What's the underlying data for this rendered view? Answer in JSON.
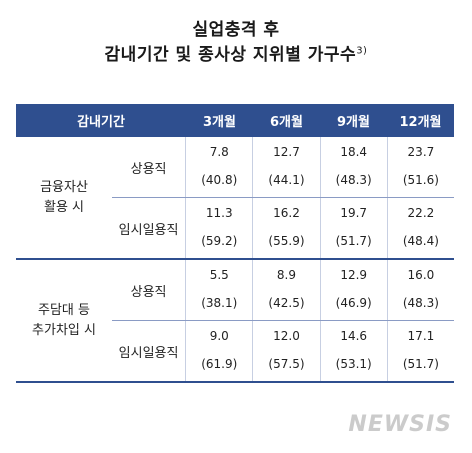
{
  "title": {
    "line1": "실업충격 후",
    "line2": "감내기간 및 종사상 지위별 가구수",
    "footnote": "3)"
  },
  "table": {
    "header": [
      "감내기간",
      "3개월",
      "6개월",
      "9개월",
      "12개월"
    ],
    "groups": [
      {
        "label_lines": [
          "금융자산",
          "활용 시"
        ],
        "rows": [
          {
            "label": "상용직",
            "values": [
              "7.8",
              "12.7",
              "18.4",
              "23.7"
            ],
            "pcts": [
              "(40.8)",
              "(44.1)",
              "(48.3)",
              "(51.6)"
            ]
          },
          {
            "label": "임시일용직",
            "values": [
              "11.3",
              "16.2",
              "19.7",
              "22.2"
            ],
            "pcts": [
              "(59.2)",
              "(55.9)",
              "(51.7)",
              "(48.4)"
            ]
          }
        ]
      },
      {
        "label_lines": [
          "주담대 등",
          "추가차입 시"
        ],
        "rows": [
          {
            "label": "상용직",
            "values": [
              "5.5",
              "8.9",
              "12.9",
              "16.0"
            ],
            "pcts": [
              "(38.1)",
              "(42.5)",
              "(46.9)",
              "(48.3)"
            ]
          },
          {
            "label": "임시일용직",
            "values": [
              "9.0",
              "12.0",
              "14.6",
              "17.1"
            ],
            "pcts": [
              "(61.9)",
              "(57.5)",
              "(53.1)",
              "(51.7)"
            ]
          }
        ]
      }
    ]
  },
  "watermark": "NEWSIS",
  "colors": {
    "header_bg": "#2f4f8f",
    "header_text": "#ffffff",
    "divider": "#2f4f8f"
  }
}
